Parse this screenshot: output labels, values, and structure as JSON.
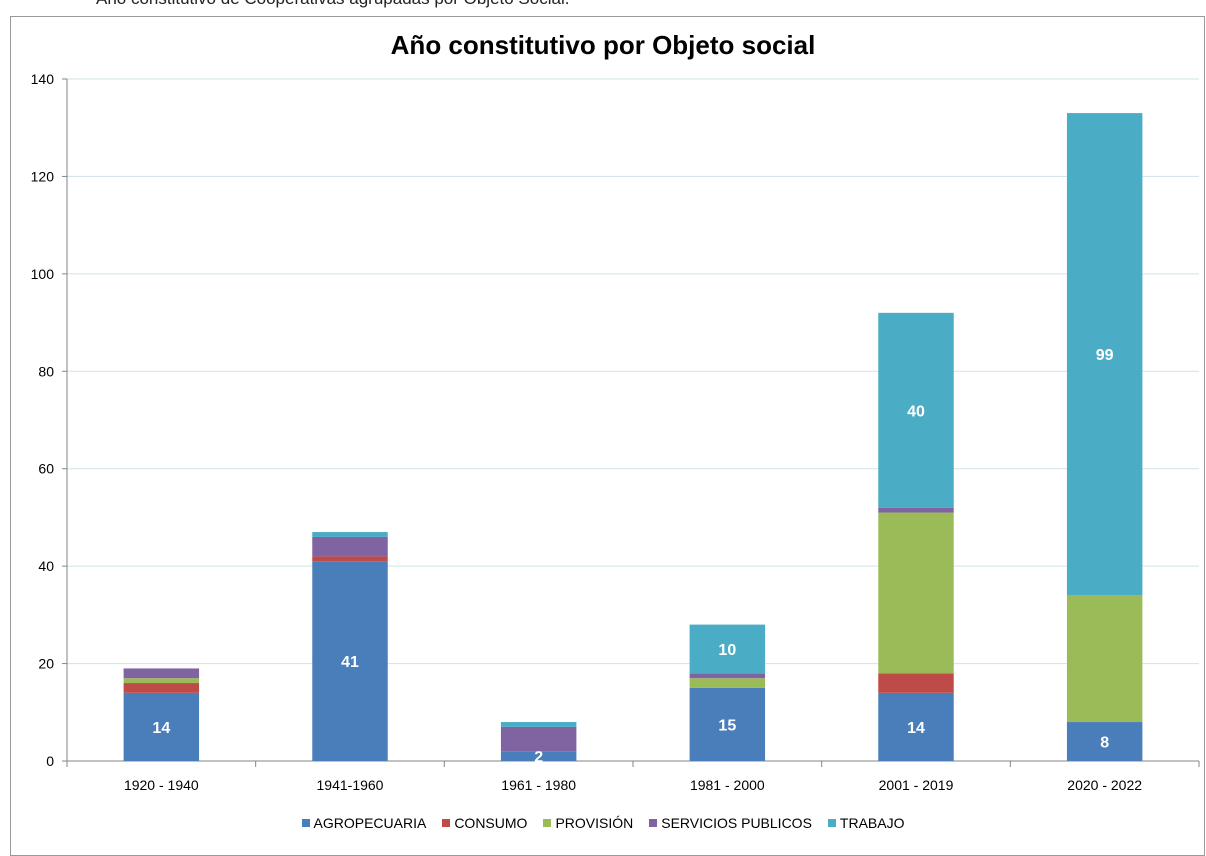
{
  "caption": "Año constitutivo  de Cooperativas agrupadas por Objeto Social.",
  "chart_data": {
    "type": "bar",
    "stacked": true,
    "title": "Año constitutivo por Objeto social",
    "xlabel": "",
    "ylabel": "",
    "ylim": [
      0,
      140
    ],
    "yticks": [
      0,
      20,
      40,
      60,
      80,
      100,
      120,
      140
    ],
    "grid": true,
    "legend_position": "bottom",
    "categories": [
      "1920 - 1940",
      "1941-1960",
      "1961 - 1980",
      "1981 - 2000",
      "2001 - 2019",
      "2020 - 2022"
    ],
    "series": [
      {
        "name": "AGROPECUARIA",
        "color": "#4a7ebb",
        "values": [
          14,
          41,
          2,
          15,
          14,
          8
        ],
        "labels": [
          "14",
          "41",
          "2",
          "15",
          "14",
          "8"
        ]
      },
      {
        "name": "CONSUMO",
        "color": "#be4b48",
        "values": [
          2,
          1,
          0,
          0,
          4,
          0
        ],
        "labels": [
          "",
          "",
          "",
          "",
          "",
          ""
        ]
      },
      {
        "name": "PROVISIÓN",
        "color": "#9bbb59",
        "values": [
          1,
          0,
          0,
          2,
          33,
          26
        ],
        "labels": [
          "",
          "",
          "",
          "",
          "",
          ""
        ]
      },
      {
        "name": "SERVICIOS PUBLICOS",
        "color": "#8064a2",
        "values": [
          2,
          4,
          5,
          1,
          1,
          0
        ],
        "labels": [
          "",
          "",
          "",
          "",
          "",
          ""
        ]
      },
      {
        "name": "TRABAJO",
        "color": "#4bacc6",
        "values": [
          0,
          1,
          1,
          10,
          40,
          99
        ],
        "labels": [
          "",
          "",
          "",
          "10",
          "40",
          "99"
        ]
      }
    ]
  }
}
